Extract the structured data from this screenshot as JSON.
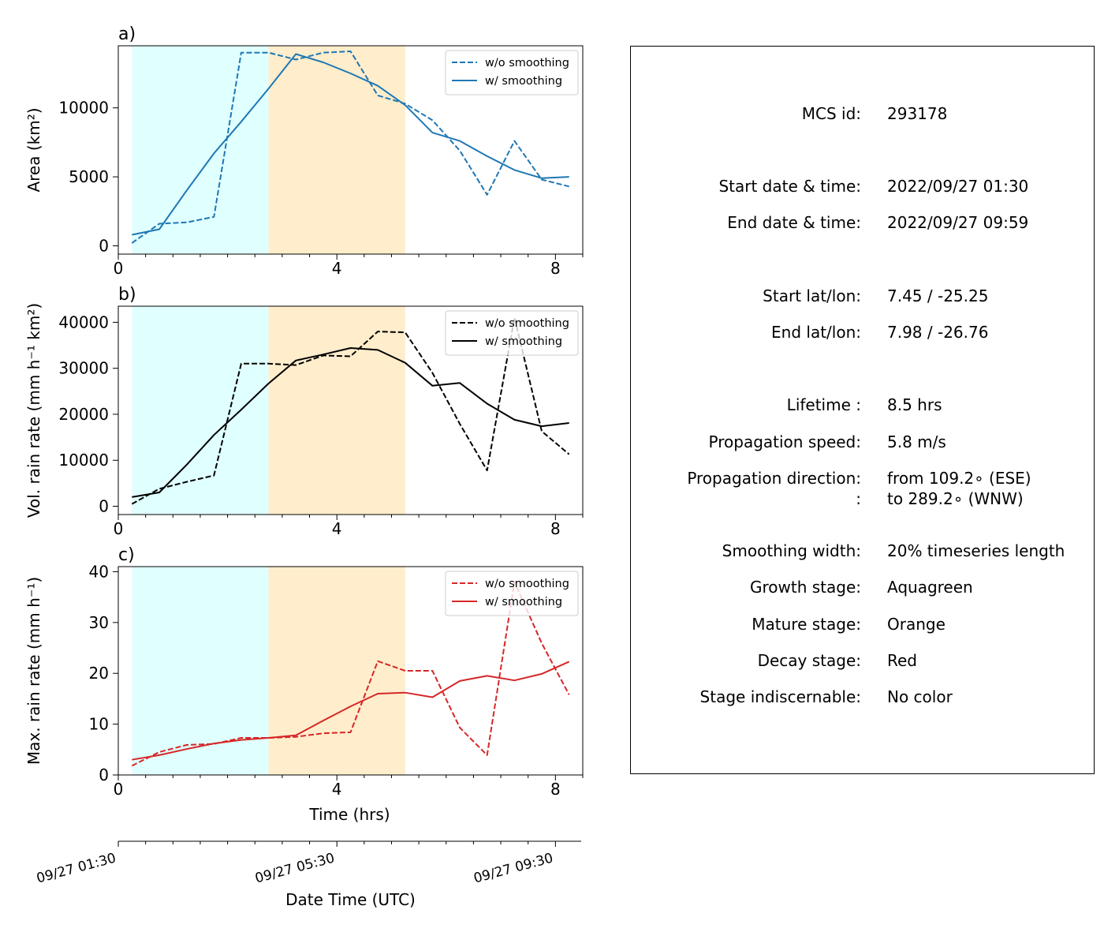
{
  "chart_data": [
    {
      "panel_label": "a)",
      "type": "line",
      "ylabel": "Area  (km²)",
      "xlabel": "",
      "xlim": [
        0,
        8.5
      ],
      "ylim": [
        -600,
        14500
      ],
      "xticks": [
        0,
        4,
        8
      ],
      "yticks": [
        0,
        5000,
        10000
      ],
      "ytick_labels": [
        "0",
        "5000",
        "10000"
      ],
      "stage_spans": [
        {
          "stage": "growth",
          "from": 0.25,
          "to": 2.75,
          "color": "#e0ffff"
        },
        {
          "stage": "mature",
          "from": 2.75,
          "to": 5.25,
          "color": "#ffedcc"
        }
      ],
      "legend_position": "top-right",
      "series": [
        {
          "name": "w/o smoothing",
          "style": "dashed",
          "color": "#1f77b4",
          "x": [
            0.25,
            0.75,
            1.25,
            1.75,
            2.25,
            2.75,
            3.25,
            3.75,
            4.25,
            4.75,
            5.25,
            5.75,
            6.25,
            6.75,
            7.25,
            7.75,
            8.25
          ],
          "values": [
            200,
            1600,
            1700,
            2100,
            14000,
            14000,
            13500,
            14000,
            14100,
            10900,
            10300,
            9100,
            6900,
            3700,
            7600,
            4800,
            4300
          ]
        },
        {
          "name": "w/ smoothing",
          "style": "solid",
          "color": "#1f77b4",
          "x": [
            0.25,
            0.75,
            1.25,
            1.75,
            2.25,
            2.75,
            3.25,
            3.75,
            4.25,
            4.75,
            5.25,
            5.75,
            6.25,
            6.75,
            7.25,
            7.75,
            8.25
          ],
          "values": [
            800,
            1200,
            4000,
            6700,
            9000,
            11400,
            13900,
            13300,
            12500,
            11600,
            10200,
            8200,
            7600,
            6500,
            5500,
            4900,
            5000
          ]
        }
      ]
    },
    {
      "panel_label": "b)",
      "type": "line",
      "ylabel": "Vol. rain rate (mm h⁻¹ km²)",
      "xlabel": "",
      "xlim": [
        0,
        8.5
      ],
      "ylim": [
        -1800,
        43500
      ],
      "xticks": [
        0,
        4,
        8
      ],
      "yticks": [
        0,
        10000,
        20000,
        30000,
        40000
      ],
      "ytick_labels": [
        "0",
        "10000",
        "20000",
        "30000",
        "40000"
      ],
      "stage_spans": [
        {
          "stage": "growth",
          "from": 0.25,
          "to": 2.75,
          "color": "#e0ffff"
        },
        {
          "stage": "mature",
          "from": 2.75,
          "to": 5.25,
          "color": "#ffedcc"
        }
      ],
      "legend_position": "top-right",
      "series": [
        {
          "name": "w/o smoothing",
          "style": "dashed",
          "color": "#000000",
          "x": [
            0.25,
            0.75,
            1.25,
            1.75,
            2.25,
            2.75,
            3.25,
            3.75,
            4.25,
            4.75,
            5.25,
            5.75,
            6.25,
            6.75,
            7.25,
            7.75,
            8.25
          ],
          "values": [
            500,
            3800,
            5300,
            6700,
            31000,
            31000,
            30700,
            32800,
            32600,
            38000,
            37800,
            29000,
            17900,
            7800,
            41000,
            16300,
            11300
          ]
        },
        {
          "name": "w/ smoothing",
          "style": "solid",
          "color": "#000000",
          "x": [
            0.25,
            0.75,
            1.25,
            1.75,
            2.25,
            2.75,
            3.25,
            3.75,
            4.25,
            4.75,
            5.25,
            5.75,
            6.25,
            6.75,
            7.25,
            7.75,
            8.25
          ],
          "values": [
            2000,
            3000,
            9000,
            15500,
            21000,
            26700,
            31700,
            33000,
            34400,
            34000,
            31200,
            26200,
            26800,
            22300,
            18800,
            17400,
            18100
          ]
        }
      ]
    },
    {
      "panel_label": "c)",
      "type": "line",
      "ylabel": "Max. rain rate  (mm h⁻¹)",
      "xlabel": "Time (hrs)",
      "xlim": [
        0,
        8.5
      ],
      "ylim": [
        0,
        41
      ],
      "xticks": [
        0,
        4,
        8
      ],
      "yticks": [
        0,
        10,
        20,
        30,
        40
      ],
      "ytick_labels": [
        "0",
        "10",
        "20",
        "30",
        "40"
      ],
      "stage_spans": [
        {
          "stage": "growth",
          "from": 0.25,
          "to": 2.75,
          "color": "#e0ffff"
        },
        {
          "stage": "mature",
          "from": 2.75,
          "to": 5.25,
          "color": "#ffedcc"
        }
      ],
      "legend_position": "top-right",
      "series": [
        {
          "name": "w/o smoothing",
          "style": "dashed",
          "color": "#d62728",
          "x": [
            0.25,
            0.75,
            1.25,
            1.75,
            2.25,
            2.75,
            3.25,
            3.75,
            4.25,
            4.75,
            5.25,
            5.75,
            6.25,
            6.75,
            7.25,
            7.75,
            8.25
          ],
          "values": [
            1.8,
            4.5,
            5.9,
            6.1,
            7.3,
            7.3,
            7.5,
            8.2,
            8.4,
            22.4,
            20.5,
            20.5,
            9.3,
            3.9,
            38.0,
            25.9,
            15.8
          ]
        },
        {
          "name": "w/ smoothing",
          "style": "solid",
          "color": "#d62728",
          "x": [
            0.25,
            0.75,
            1.25,
            1.75,
            2.25,
            2.75,
            3.25,
            3.75,
            4.25,
            4.75,
            5.25,
            5.75,
            6.25,
            6.75,
            7.25,
            7.75,
            8.25
          ],
          "values": [
            3.0,
            3.9,
            5.1,
            6.2,
            6.9,
            7.3,
            7.8,
            10.7,
            13.5,
            16.0,
            16.2,
            15.3,
            18.5,
            19.5,
            18.6,
            19.9,
            22.3
          ]
        }
      ]
    }
  ],
  "datetime_axis": {
    "xlabel": "Date Time (UTC)",
    "tick_hours": [
      0,
      4,
      8
    ],
    "tick_labels": [
      "09/27 01:30",
      "09/27 05:30",
      "09/27 09:30"
    ]
  },
  "info": {
    "rows": [
      {
        "label": "MCS id:",
        "value": "293178"
      },
      {
        "label": "Start date & time:",
        "value": "2022/09/27 01:30"
      },
      {
        "label": "End date & time:",
        "value": "2022/09/27 09:59"
      },
      {
        "label": "Start lat/lon:",
        "value": "7.45 / -25.25"
      },
      {
        "label": "End lat/lon:",
        "value": "7.98 / -26.76"
      },
      {
        "label": "Lifetime :",
        "value": "8.5 hrs"
      },
      {
        "label": "Propagation speed:",
        "value": "5.8 m/s"
      },
      {
        "label": "Propagation direction:",
        "value": "from 109.2∘ (ESE)"
      },
      {
        "label": ":",
        "value": "to   289.2∘ (WNW)"
      },
      {
        "label": "Smoothing width:",
        "value": "20% timeseries length"
      },
      {
        "label": "Growth stage:",
        "value": "Aquagreen"
      },
      {
        "label": "Mature stage:",
        "value": "Orange"
      },
      {
        "label": "Decay stage:",
        "value": "Red"
      },
      {
        "label": "Stage indiscernable:",
        "value": "No color"
      }
    ]
  }
}
